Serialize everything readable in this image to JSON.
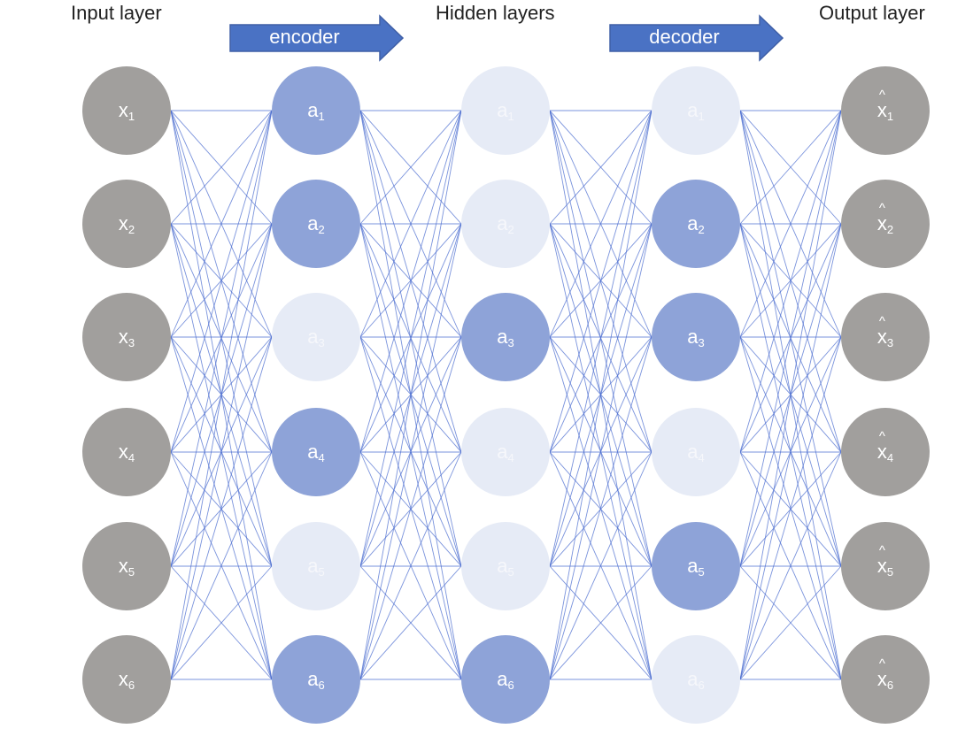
{
  "labels": {
    "input_layer": "Input layer",
    "hidden_layers": "Hidden layers",
    "output_layer": "Output layer",
    "encoder": "encoder",
    "decoder": "decoder"
  },
  "colors": {
    "input_node": "#a19f9d",
    "output_node": "#a19f9d",
    "active_node": "#8ea3d8",
    "inactive_node": "#e6ebf6",
    "inactive_text": "#f6f7fb",
    "edge": "#4d6fd0",
    "arrow_fill": "#4a72c4",
    "arrow_stroke": "#3f5fa6"
  },
  "layers": [
    {
      "id": "input",
      "nodes": [
        {
          "var": "x",
          "sub": "1",
          "hat": false,
          "state": "input"
        },
        {
          "var": "x",
          "sub": "2",
          "hat": false,
          "state": "input"
        },
        {
          "var": "x",
          "sub": "3",
          "hat": false,
          "state": "input"
        },
        {
          "var": "x",
          "sub": "4",
          "hat": false,
          "state": "input"
        },
        {
          "var": "x",
          "sub": "5",
          "hat": false,
          "state": "input"
        },
        {
          "var": "x",
          "sub": "6",
          "hat": false,
          "state": "input"
        }
      ]
    },
    {
      "id": "hidden-1",
      "nodes": [
        {
          "var": "a",
          "sub": "1",
          "hat": false,
          "state": "active"
        },
        {
          "var": "a",
          "sub": "2",
          "hat": false,
          "state": "active"
        },
        {
          "var": "a",
          "sub": "3",
          "hat": false,
          "state": "inactive"
        },
        {
          "var": "a",
          "sub": "4",
          "hat": false,
          "state": "active"
        },
        {
          "var": "a",
          "sub": "5",
          "hat": false,
          "state": "inactive"
        },
        {
          "var": "a",
          "sub": "6",
          "hat": false,
          "state": "active"
        }
      ]
    },
    {
      "id": "hidden-2",
      "nodes": [
        {
          "var": "a",
          "sub": "1",
          "hat": false,
          "state": "inactive"
        },
        {
          "var": "a",
          "sub": "2",
          "hat": false,
          "state": "inactive"
        },
        {
          "var": "a",
          "sub": "3",
          "hat": false,
          "state": "active"
        },
        {
          "var": "a",
          "sub": "4",
          "hat": false,
          "state": "inactive"
        },
        {
          "var": "a",
          "sub": "5",
          "hat": false,
          "state": "inactive"
        },
        {
          "var": "a",
          "sub": "6",
          "hat": false,
          "state": "active"
        }
      ]
    },
    {
      "id": "hidden-3",
      "nodes": [
        {
          "var": "a",
          "sub": "1",
          "hat": false,
          "state": "inactive"
        },
        {
          "var": "a",
          "sub": "2",
          "hat": false,
          "state": "active"
        },
        {
          "var": "a",
          "sub": "3",
          "hat": false,
          "state": "active"
        },
        {
          "var": "a",
          "sub": "4",
          "hat": false,
          "state": "inactive"
        },
        {
          "var": "a",
          "sub": "5",
          "hat": false,
          "state": "active"
        },
        {
          "var": "a",
          "sub": "6",
          "hat": false,
          "state": "inactive"
        }
      ]
    },
    {
      "id": "output",
      "nodes": [
        {
          "var": "x",
          "sub": "1",
          "hat": true,
          "state": "output"
        },
        {
          "var": "x",
          "sub": "2",
          "hat": true,
          "state": "output"
        },
        {
          "var": "x",
          "sub": "3",
          "hat": true,
          "state": "output"
        },
        {
          "var": "x",
          "sub": "4",
          "hat": true,
          "state": "output"
        },
        {
          "var": "x",
          "sub": "5",
          "hat": true,
          "state": "output"
        },
        {
          "var": "x",
          "sub": "6",
          "hat": true,
          "state": "output"
        }
      ]
    }
  ],
  "connectivity": "fully-connected"
}
